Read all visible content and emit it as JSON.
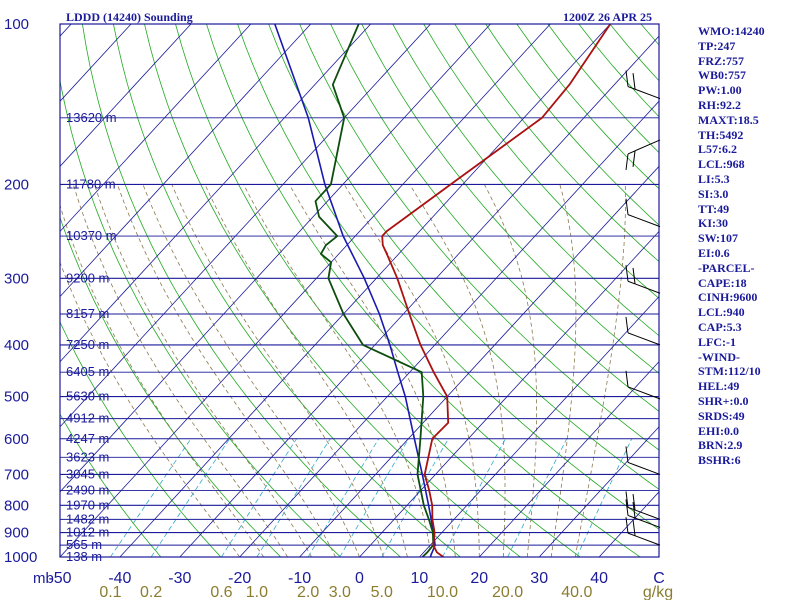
{
  "header": {
    "station": "LDDD (14240) Sounding",
    "valid_time": "1200Z 26 APR 25"
  },
  "indices": [
    "WMO:14240",
    "TP:247",
    "FRZ:757",
    "WB0:757",
    "PW:1.00",
    "RH:92.2",
    "MAXT:18.5",
    "TH:5492",
    "L57:6.2",
    "LCL:968",
    "LI:5.3",
    "SI:3.0",
    "TT:49",
    "KI:30",
    "SW:107",
    "EI:0.6",
    "-PARCEL-",
    "CAPE:18",
    "CINH:9600",
    "LCL:940",
    "CAP:5.3",
    "LFC:-1",
    "-WIND-",
    "STM:112/10",
    "HEL:49",
    "SHR+:0.0",
    "SRDS:49",
    "EHI:0.0",
    "BRN:2.9",
    "BSHR:6"
  ],
  "colors": {
    "frame": "#1a1a9a",
    "isobar": "#1a1a9a",
    "isotherm": "#1a1a9a",
    "dry_adiabat": "#22aa22",
    "moist_adiabat": "#8a7a50",
    "mixing_ratio": "#33aacc",
    "temperature": "#aa1111",
    "dewpoint": "#0d4d0d",
    "parcel": "#1a1ab0",
    "wind": "#000000",
    "mixing_label": "#8b7d30",
    "axis_label": "#1a1a9a"
  },
  "chart_data": {
    "type": "skew-t log-p sounding",
    "y_axis": {
      "unit": "mb",
      "scale": "log",
      "range": [
        1000,
        100
      ],
      "pressure_labels": [
        100,
        200,
        300,
        400,
        500,
        600,
        700,
        800,
        900,
        1000
      ]
    },
    "x_axis": {
      "unit": "C",
      "range": [
        -50,
        50
      ],
      "temperature_labels": [
        "-50",
        "-40",
        "-30",
        "-20",
        "-10",
        "0",
        "10",
        "20",
        "30",
        "40",
        "C"
      ],
      "mixing_ratio_unit": "g/kg",
      "mixing_ratio_labels": [
        "0.1",
        "0.2",
        "0.6",
        "1.0",
        "2.0",
        "3.0",
        "5.0",
        "10.0",
        "20.0",
        "40.0"
      ]
    },
    "heights": [
      {
        "p": 150,
        "label": "13620 m"
      },
      {
        "p": 200,
        "label": "11780 m"
      },
      {
        "p": 250,
        "label": "10370 m"
      },
      {
        "p": 300,
        "label": "9200 m"
      },
      {
        "p": 350,
        "label": "8157 m"
      },
      {
        "p": 400,
        "label": "7250 m"
      },
      {
        "p": 450,
        "label": "6405 m"
      },
      {
        "p": 500,
        "label": "5630 m"
      },
      {
        "p": 550,
        "label": "4912 m"
      },
      {
        "p": 600,
        "label": "4247 m"
      },
      {
        "p": 650,
        "label": "3623 m"
      },
      {
        "p": 700,
        "label": "3045 m"
      },
      {
        "p": 750,
        "label": "2490 m"
      },
      {
        "p": 800,
        "label": "1970 m"
      },
      {
        "p": 850,
        "label": "1482 m"
      },
      {
        "p": 900,
        "label": "1012 m"
      },
      {
        "p": 950,
        "label": "565 m"
      },
      {
        "p": 1000,
        "label": "138 m"
      }
    ],
    "temperature": [
      {
        "p": 1000,
        "t": 14.0
      },
      {
        "p": 980,
        "t": 12.2
      },
      {
        "p": 950,
        "t": 10.5
      },
      {
        "p": 900,
        "t": 8.8
      },
      {
        "p": 850,
        "t": 6.4
      },
      {
        "p": 800,
        "t": 4.2
      },
      {
        "p": 750,
        "t": 1.4
      },
      {
        "p": 700,
        "t": -1.8
      },
      {
        "p": 600,
        "t": -6.0
      },
      {
        "p": 560,
        "t": -5.8
      },
      {
        "p": 500,
        "t": -10.0
      },
      {
        "p": 450,
        "t": -16.0
      },
      {
        "p": 400,
        "t": -22.4
      },
      {
        "p": 350,
        "t": -29.0
      },
      {
        "p": 300,
        "t": -36.5
      },
      {
        "p": 270,
        "t": -42.0
      },
      {
        "p": 260,
        "t": -44.0
      },
      {
        "p": 250,
        "t": -45.5
      },
      {
        "p": 245,
        "t": -45.5
      },
      {
        "p": 200,
        "t": -42.0
      },
      {
        "p": 150,
        "t": -37.0
      },
      {
        "p": 130,
        "t": -37.5
      },
      {
        "p": 100,
        "t": -40.0
      }
    ],
    "dewpoint": [
      {
        "p": 1000,
        "t": 10.5
      },
      {
        "p": 980,
        "t": 10.6
      },
      {
        "p": 950,
        "t": 10.5
      },
      {
        "p": 900,
        "t": 8.5
      },
      {
        "p": 850,
        "t": 5.8
      },
      {
        "p": 800,
        "t": 2.8
      },
      {
        "p": 750,
        "t": 0.0
      },
      {
        "p": 700,
        "t": -3.0
      },
      {
        "p": 600,
        "t": -8.0
      },
      {
        "p": 500,
        "t": -14.0
      },
      {
        "p": 450,
        "t": -18.0
      },
      {
        "p": 400,
        "t": -32.0
      },
      {
        "p": 350,
        "t": -40.0
      },
      {
        "p": 300,
        "t": -48.0
      },
      {
        "p": 280,
        "t": -50.0
      },
      {
        "p": 270,
        "t": -53.0
      },
      {
        "p": 260,
        "t": -53.5
      },
      {
        "p": 250,
        "t": -53.0
      },
      {
        "p": 230,
        "t": -59.0
      },
      {
        "p": 215,
        "t": -62.0
      },
      {
        "p": 200,
        "t": -62.0
      },
      {
        "p": 150,
        "t": -70.0
      },
      {
        "p": 130,
        "t": -77.0
      },
      {
        "p": 100,
        "t": -82.0
      }
    ],
    "parcel": [
      {
        "p": 1000,
        "t": 11.8
      },
      {
        "p": 950,
        "t": 10.8
      },
      {
        "p": 900,
        "t": 8.6
      },
      {
        "p": 850,
        "t": 6.2
      },
      {
        "p": 800,
        "t": 3.6
      },
      {
        "p": 750,
        "t": 0.8
      },
      {
        "p": 700,
        "t": -2.2
      },
      {
        "p": 600,
        "t": -9.0
      },
      {
        "p": 500,
        "t": -17.0
      },
      {
        "p": 450,
        "t": -22.0
      },
      {
        "p": 400,
        "t": -27.5
      },
      {
        "p": 350,
        "t": -34.0
      },
      {
        "p": 300,
        "t": -42.0
      },
      {
        "p": 250,
        "t": -52.0
      },
      {
        "p": 200,
        "t": -63.0
      },
      {
        "p": 150,
        "t": -76.0
      },
      {
        "p": 100,
        "t": -96.0
      }
    ],
    "wind_barbs": [
      {
        "p": 138,
        "barbs": 2,
        "dir": "northwest"
      },
      {
        "p": 165,
        "barbs": 2,
        "dir": "southeast"
      },
      {
        "p": 240,
        "barbs": 1,
        "dir": "northwest"
      },
      {
        "p": 320,
        "barbs": 2,
        "dir": "northwest"
      },
      {
        "p": 400,
        "barbs": 1,
        "dir": "northwest"
      },
      {
        "p": 505,
        "barbs": 1,
        "dir": "northwest"
      },
      {
        "p": 700,
        "barbs": 1,
        "dir": "northwest"
      },
      {
        "p": 850,
        "barbs": 2,
        "dir": "northwest"
      },
      {
        "p": 880,
        "barbs": 2,
        "dir": "northwest"
      },
      {
        "p": 950,
        "barbs": 2,
        "dir": "northwest"
      }
    ],
    "dry_adiabats_thetaK": [
      240,
      250,
      260,
      270,
      280,
      290,
      300,
      310,
      320,
      330,
      340,
      350,
      360,
      370,
      380,
      390,
      400,
      410,
      420,
      430,
      440,
      450,
      460
    ],
    "moist_adiabats_C": [
      -20,
      -16,
      -12,
      -8,
      -4,
      0,
      4,
      8,
      12,
      16,
      20,
      24,
      28,
      32,
      36
    ],
    "mixing_ratios_gkg": [
      0.1,
      0.2,
      0.6,
      1.0,
      2.0,
      3.0,
      5.0,
      10.0,
      20.0,
      40.0
    ]
  }
}
